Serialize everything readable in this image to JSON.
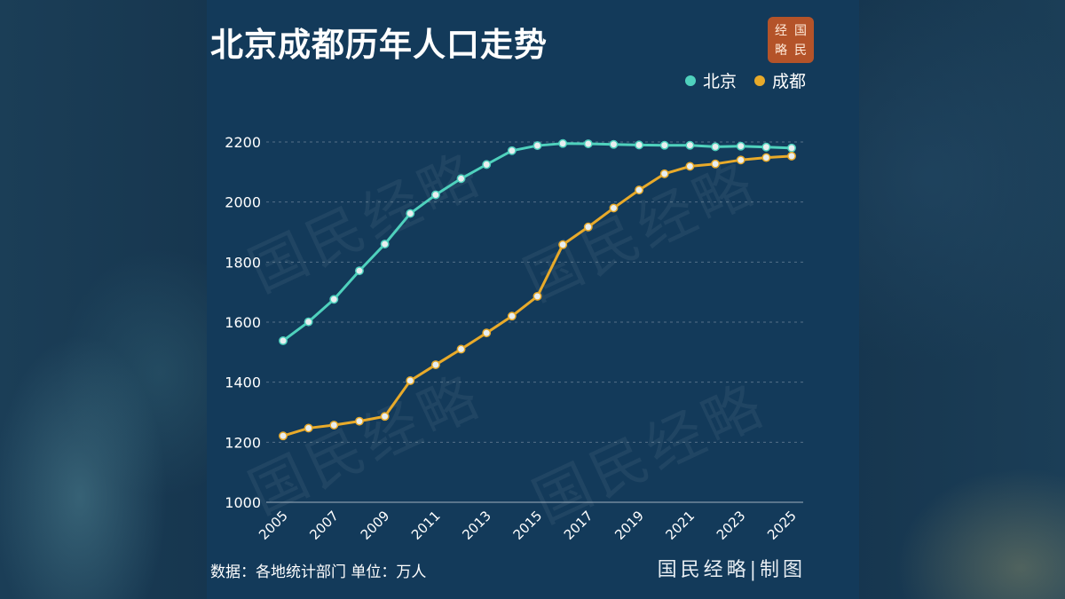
{
  "title": "北京成都历年人口走势",
  "seal": [
    "经",
    "国",
    "略",
    "民"
  ],
  "watermark": "国民经略",
  "legend": [
    {
      "label": "北京",
      "color": "#4fd1bd"
    },
    {
      "label": "成都",
      "color": "#e8aa2a"
    }
  ],
  "footer": {
    "note": "数据：各地统计部门  单位：万人",
    "brand": "国民经略|制图"
  },
  "chart_data": {
    "type": "line",
    "x": [
      2005,
      2006,
      2007,
      2008,
      2009,
      2010,
      2011,
      2012,
      2013,
      2014,
      2015,
      2016,
      2017,
      2018,
      2019,
      2020,
      2021,
      2022,
      2023,
      2024,
      2025
    ],
    "xticks": [
      "2005",
      "2007",
      "2009",
      "2011",
      "2013",
      "2015",
      "2017",
      "2019",
      "2021",
      "2023",
      "2025"
    ],
    "yticks": [
      "1000",
      "1200",
      "1400",
      "1600",
      "1800",
      "2000",
      "2200"
    ],
    "ylim": [
      1000,
      2200
    ],
    "grid": true,
    "legend_position": "top-right",
    "series": [
      {
        "name": "北京",
        "color": "#4fd1bd",
        "values": [
          1538,
          1601,
          1676,
          1771,
          1860,
          1962,
          2024,
          2078,
          2125,
          2171,
          2188,
          2195,
          2194,
          2192,
          2190,
          2189,
          2189,
          2184,
          2186,
          2183,
          2180
        ]
      },
      {
        "name": "成都",
        "color": "#e8aa2a",
        "values": [
          1221,
          1247,
          1257,
          1270,
          1286,
          1405,
          1458,
          1510,
          1564,
          1620,
          1686,
          1858,
          1917,
          1980,
          2040,
          2094,
          2119,
          2127,
          2140,
          2148,
          2153
        ]
      }
    ]
  }
}
